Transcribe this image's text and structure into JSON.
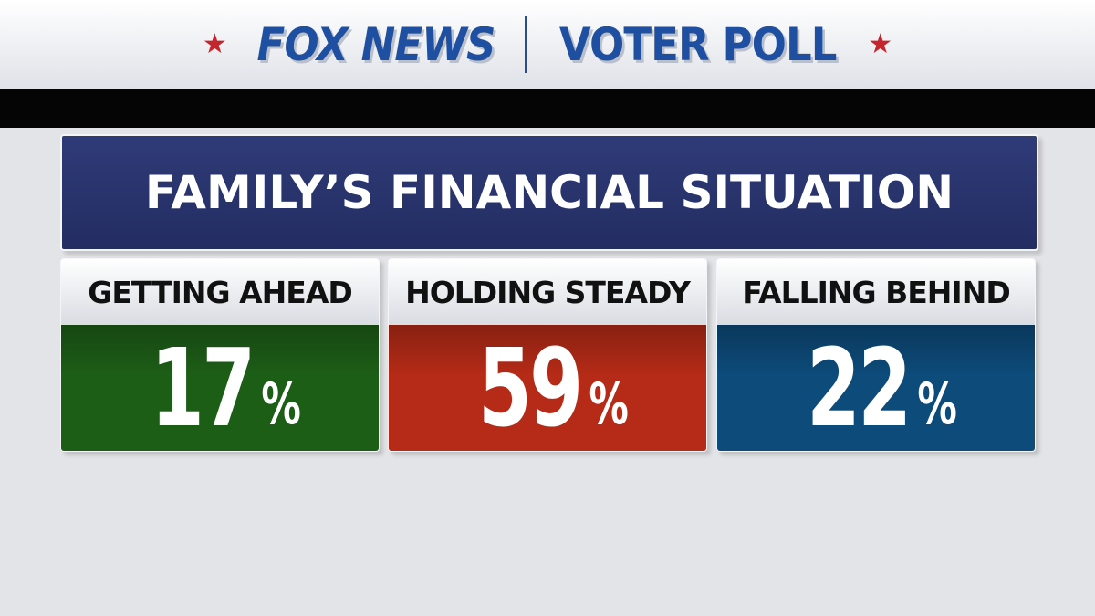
{
  "header": {
    "brand": "FOX NEWS",
    "section": "VOTER POLL"
  },
  "title": "FAMILY’S FINANCIAL SITUATION",
  "panels": [
    {
      "label": "GETTING AHEAD",
      "value": "17",
      "unit": "%",
      "color": "#1d5e17"
    },
    {
      "label": "HOLDING STEADY",
      "value": "59",
      "unit": "%",
      "color": "#b52b17"
    },
    {
      "label": "FALLING BEHIND",
      "value": "22",
      "unit": "%",
      "color": "#0d4b7a"
    }
  ]
}
